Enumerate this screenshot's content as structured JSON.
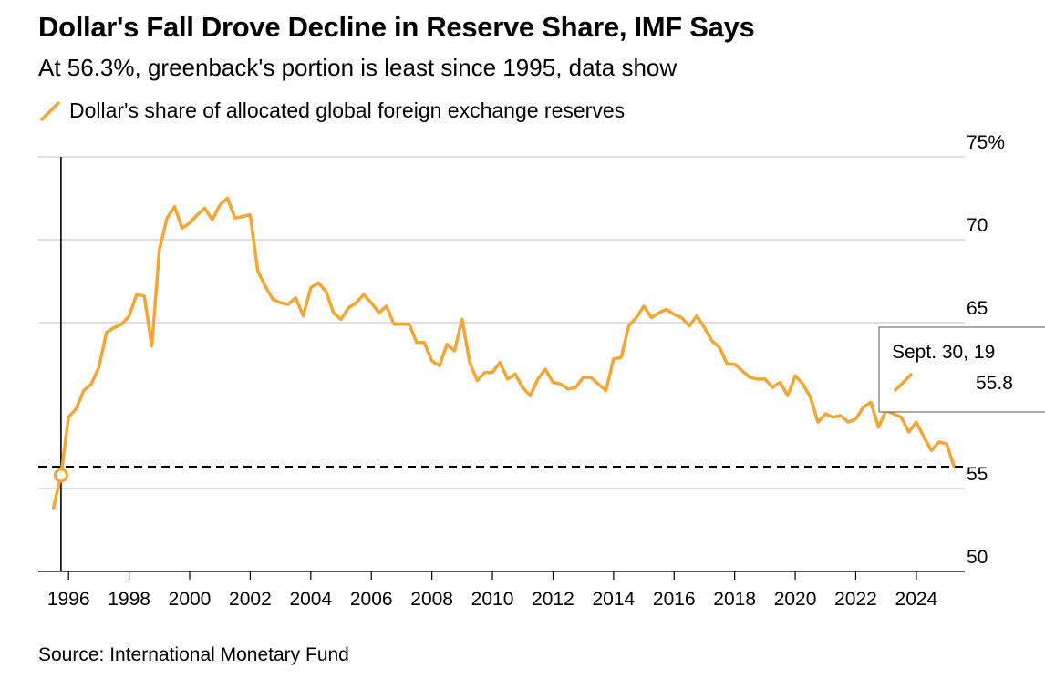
{
  "title": "Dollar's Fall Drove Decline in Reserve Share, IMF Says",
  "subtitle": "At 56.3%, greenback's portion is least since 1995, data show",
  "source": "Source: International Monetary Fund",
  "colors": {
    "series": "#f5a534",
    "grid": "#cccccc",
    "axis": "#000000",
    "reference_line": "#000000"
  },
  "legend": {
    "label": "Dollar's share of allocated global foreign exchange reserves"
  },
  "tooltip": {
    "date": "Sept. 30, 19",
    "value": "55.8"
  },
  "chart_data": {
    "type": "line",
    "title": "Dollar's Fall Drove Decline in Reserve Share, IMF Says",
    "xlabel": "",
    "ylabel": "",
    "xlim": [
      1995.0,
      2025.6
    ],
    "ylim": [
      50,
      75
    ],
    "y_axis_side": "right",
    "y_ticks": [
      75,
      70,
      65,
      55,
      50
    ],
    "y_tick_labels": [
      "75%",
      "70",
      "65",
      "55",
      "50"
    ],
    "x_ticks": [
      1996,
      1998,
      2000,
      2002,
      2004,
      2006,
      2008,
      2010,
      2012,
      2014,
      2016,
      2018,
      2020,
      2022,
      2024
    ],
    "x_tick_labels": [
      "1996",
      "1998",
      "2000",
      "2002",
      "2004",
      "2006",
      "2008",
      "2010",
      "2012",
      "2014",
      "2016",
      "2018",
      "2020",
      "2022",
      "2024"
    ],
    "grid": true,
    "reference_line": {
      "y": 56.3,
      "style": "dashed"
    },
    "marker": {
      "x": 1995.75,
      "y": 55.8
    },
    "series": [
      {
        "name": "Dollar's share of allocated global foreign exchange reserves",
        "x": [
          1995.5,
          1995.75,
          2000.75,
          1996.0,
          1996.25,
          1996.5,
          1996.75,
          1997.0,
          1997.25,
          1997.5,
          1997.75,
          1998.0,
          1998.25,
          1998.5,
          1998.75,
          1999.0,
          1999.25,
          1999.5,
          1999.75,
          2000.0,
          2000.25,
          2000.5,
          2001.0,
          2001.25,
          2001.5,
          2001.75,
          2002.0,
          2002.25,
          2002.5,
          2002.75,
          2003.0,
          2003.25,
          2003.5,
          2003.75,
          2004.0,
          2004.25,
          2004.5,
          2004.75,
          2005.0,
          2005.25,
          2005.5,
          2005.75,
          2006.0,
          2006.25,
          2006.5,
          2006.75,
          2007.0,
          2007.25,
          2007.5,
          2007.75,
          2008.0,
          2008.25,
          2008.5,
          2008.75,
          2009.0,
          2009.25,
          2009.5,
          2009.75,
          2010.0,
          2010.25,
          2010.5,
          2010.75,
          2011.0,
          2011.25,
          2011.5,
          2011.75,
          2012.0,
          2012.25,
          2012.5,
          2012.75,
          2013.0,
          2013.25,
          2013.5,
          2013.75,
          2014.0,
          2014.25,
          2014.5,
          2014.75,
          2015.0,
          2015.25,
          2015.5,
          2015.75,
          2016.0,
          2016.25,
          2016.5,
          2016.75,
          2017.0,
          2017.25,
          2017.5,
          2017.75,
          2018.0,
          2018.25,
          2018.5,
          2018.75,
          2019.0,
          2019.25,
          2019.5,
          2019.75,
          2020.0,
          2020.25,
          2020.5,
          2020.75,
          2021.0,
          2021.25,
          2021.5,
          2021.75,
          2022.0,
          2022.25,
          2022.5,
          2022.75,
          2023.0,
          2023.25,
          2023.5,
          2023.75,
          2024.0,
          2024.25,
          2024.5,
          2024.75,
          2025.0,
          2025.25
        ],
        "values": [
          53.8,
          55.8,
          71.2,
          59.3,
          59.8,
          60.9,
          61.3,
          62.3,
          64.4,
          64.7,
          64.9,
          65.4,
          66.7,
          66.6,
          63.6,
          69.4,
          71.3,
          72.0,
          70.7,
          71.0,
          71.5,
          71.9,
          72.1,
          72.5,
          71.3,
          71.4,
          71.5,
          68.1,
          67.2,
          66.4,
          66.2,
          66.1,
          66.5,
          65.4,
          67.1,
          67.4,
          66.9,
          65.6,
          65.2,
          65.9,
          66.2,
          66.7,
          66.2,
          65.6,
          66.0,
          64.9,
          64.9,
          64.9,
          63.8,
          63.8,
          62.7,
          62.4,
          63.7,
          63.3,
          65.2,
          62.6,
          61.5,
          62.0,
          62.0,
          62.6,
          61.6,
          61.9,
          61.1,
          60.6,
          61.6,
          62.2,
          61.4,
          61.3,
          61.0,
          61.1,
          61.7,
          61.7,
          61.3,
          60.9,
          62.8,
          62.9,
          64.8,
          65.3,
          66.0,
          65.3,
          65.6,
          65.8,
          65.5,
          65.3,
          64.8,
          65.4,
          64.7,
          63.9,
          63.5,
          62.5,
          62.5,
          62.1,
          61.7,
          61.6,
          61.6,
          61.1,
          61.4,
          60.6,
          61.8,
          61.3,
          60.5,
          59.0,
          59.5,
          59.3,
          59.4,
          59.0,
          59.2,
          59.9,
          60.2,
          58.7,
          59.7,
          59.5,
          59.3,
          58.4,
          59.0,
          58.1,
          57.3,
          57.8,
          57.7,
          56.3
        ]
      }
    ]
  }
}
